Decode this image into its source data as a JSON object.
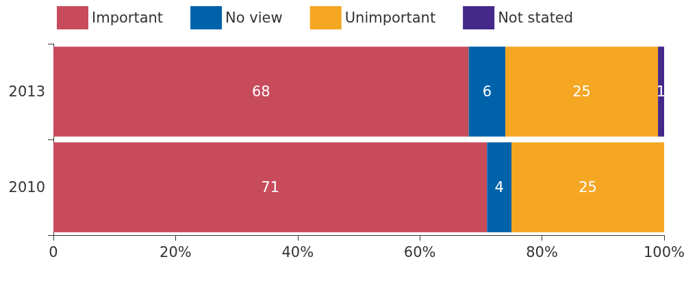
{
  "chart_data": {
    "type": "bar",
    "orientation": "horizontal",
    "stacked": true,
    "categories": [
      "2013",
      "2010"
    ],
    "series": [
      {
        "name": "Important",
        "color": "#c84b5c",
        "values": [
          68,
          71
        ]
      },
      {
        "name": "No view",
        "color": "#0062a8",
        "values": [
          6,
          4
        ]
      },
      {
        "name": "Unimportant",
        "color": "#f5a623",
        "values": [
          25,
          25
        ]
      },
      {
        "name": "Not stated",
        "color": "#44288a",
        "values": [
          1,
          null
        ]
      }
    ],
    "xlim": [
      0,
      100
    ],
    "xticks": [
      0,
      {
        "value": 20,
        "label": "20%"
      },
      {
        "value": 40,
        "label": "40%"
      },
      {
        "value": 60,
        "label": "60%"
      },
      {
        "value": 80,
        "label": "80%"
      },
      {
        "value": 100,
        "label": "100%"
      }
    ],
    "data_labels": true,
    "legend": "top left",
    "grid": false
  }
}
